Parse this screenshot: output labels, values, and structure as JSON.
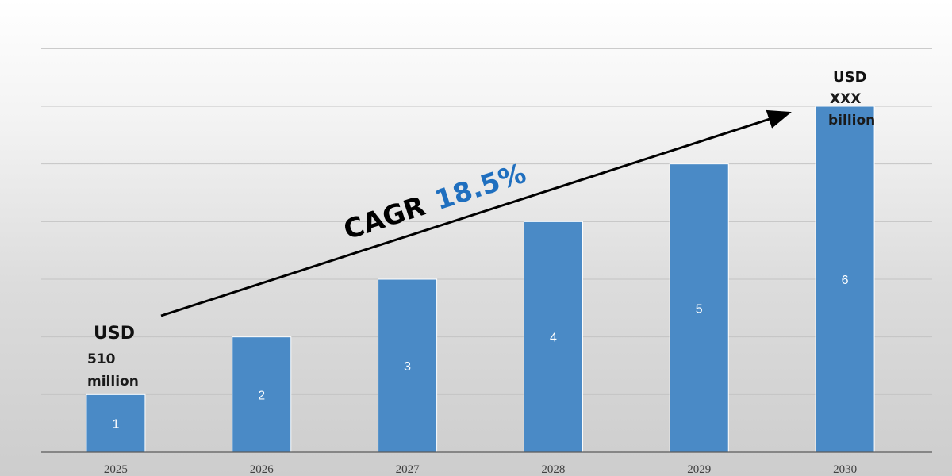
{
  "chart_data": {
    "type": "bar",
    "categories": [
      "2025",
      "2026",
      "2027",
      "2028",
      "2029",
      "2030"
    ],
    "values": [
      1,
      2,
      3,
      4,
      5,
      6
    ],
    "data_labels": [
      "1",
      "2",
      "3",
      "4",
      "5",
      "6"
    ],
    "ylim": [
      0,
      7.5
    ],
    "grid": true,
    "bar_color": "#4a8ac6",
    "start_annotation": {
      "line1": "USD",
      "line2": "510",
      "line3": "million"
    },
    "end_annotation": {
      "line1": "USD",
      "line2": "XXX",
      "line3": "billion"
    },
    "growth_label": {
      "prefix": "CAGR",
      "rate": "18.5%",
      "rate_color": "#1f6fbf"
    }
  }
}
